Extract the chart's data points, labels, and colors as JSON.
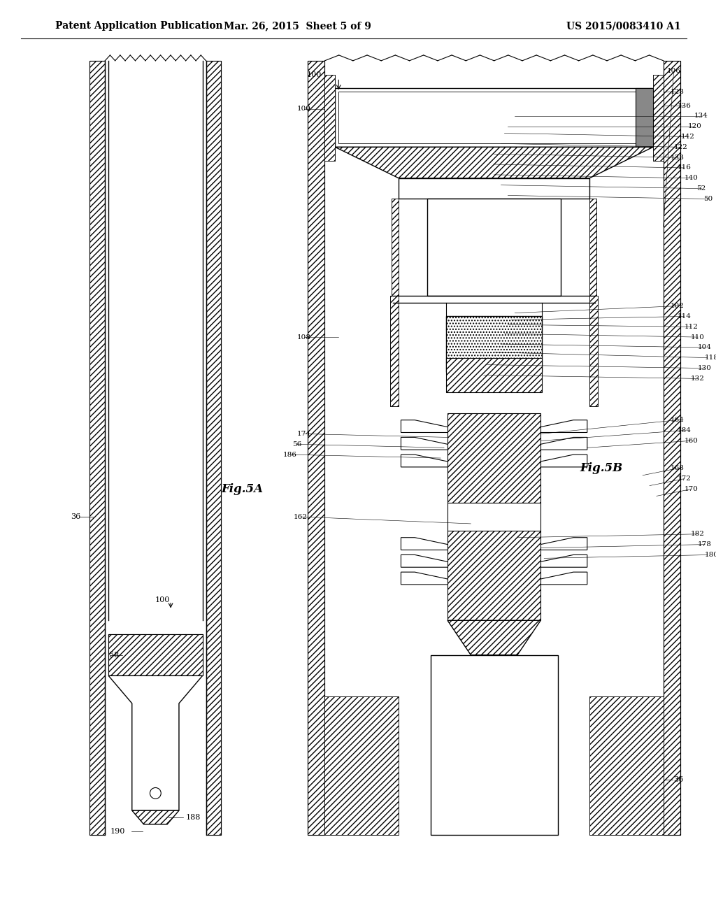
{
  "title_left": "Patent Application Publication",
  "title_center": "Mar. 26, 2015  Sheet 5 of 9",
  "title_right": "US 2015/0083410 A1",
  "background_color": "#ffffff",
  "line_color": "#000000",
  "hatch_color": "#000000",
  "fig_labels": {
    "fig5a": "Fig.5A",
    "fig5b": "Fig.5B"
  },
  "ref_numbers_left_diagram": [
    "36",
    "58",
    "188",
    "190",
    "100"
  ],
  "ref_numbers_right_top": [
    "100",
    "128",
    "136",
    "134",
    "120",
    "142",
    "122",
    "138",
    "116",
    "140",
    "52",
    "50",
    "106"
  ],
  "ref_numbers_right_mid": [
    "102",
    "114",
    "112",
    "110",
    "104",
    "118",
    "130",
    "132",
    "108"
  ],
  "ref_numbers_right_bot": [
    "164",
    "184",
    "160",
    "174",
    "56",
    "186",
    "162",
    "36",
    "168",
    "172",
    "170",
    "182",
    "178",
    "180"
  ]
}
